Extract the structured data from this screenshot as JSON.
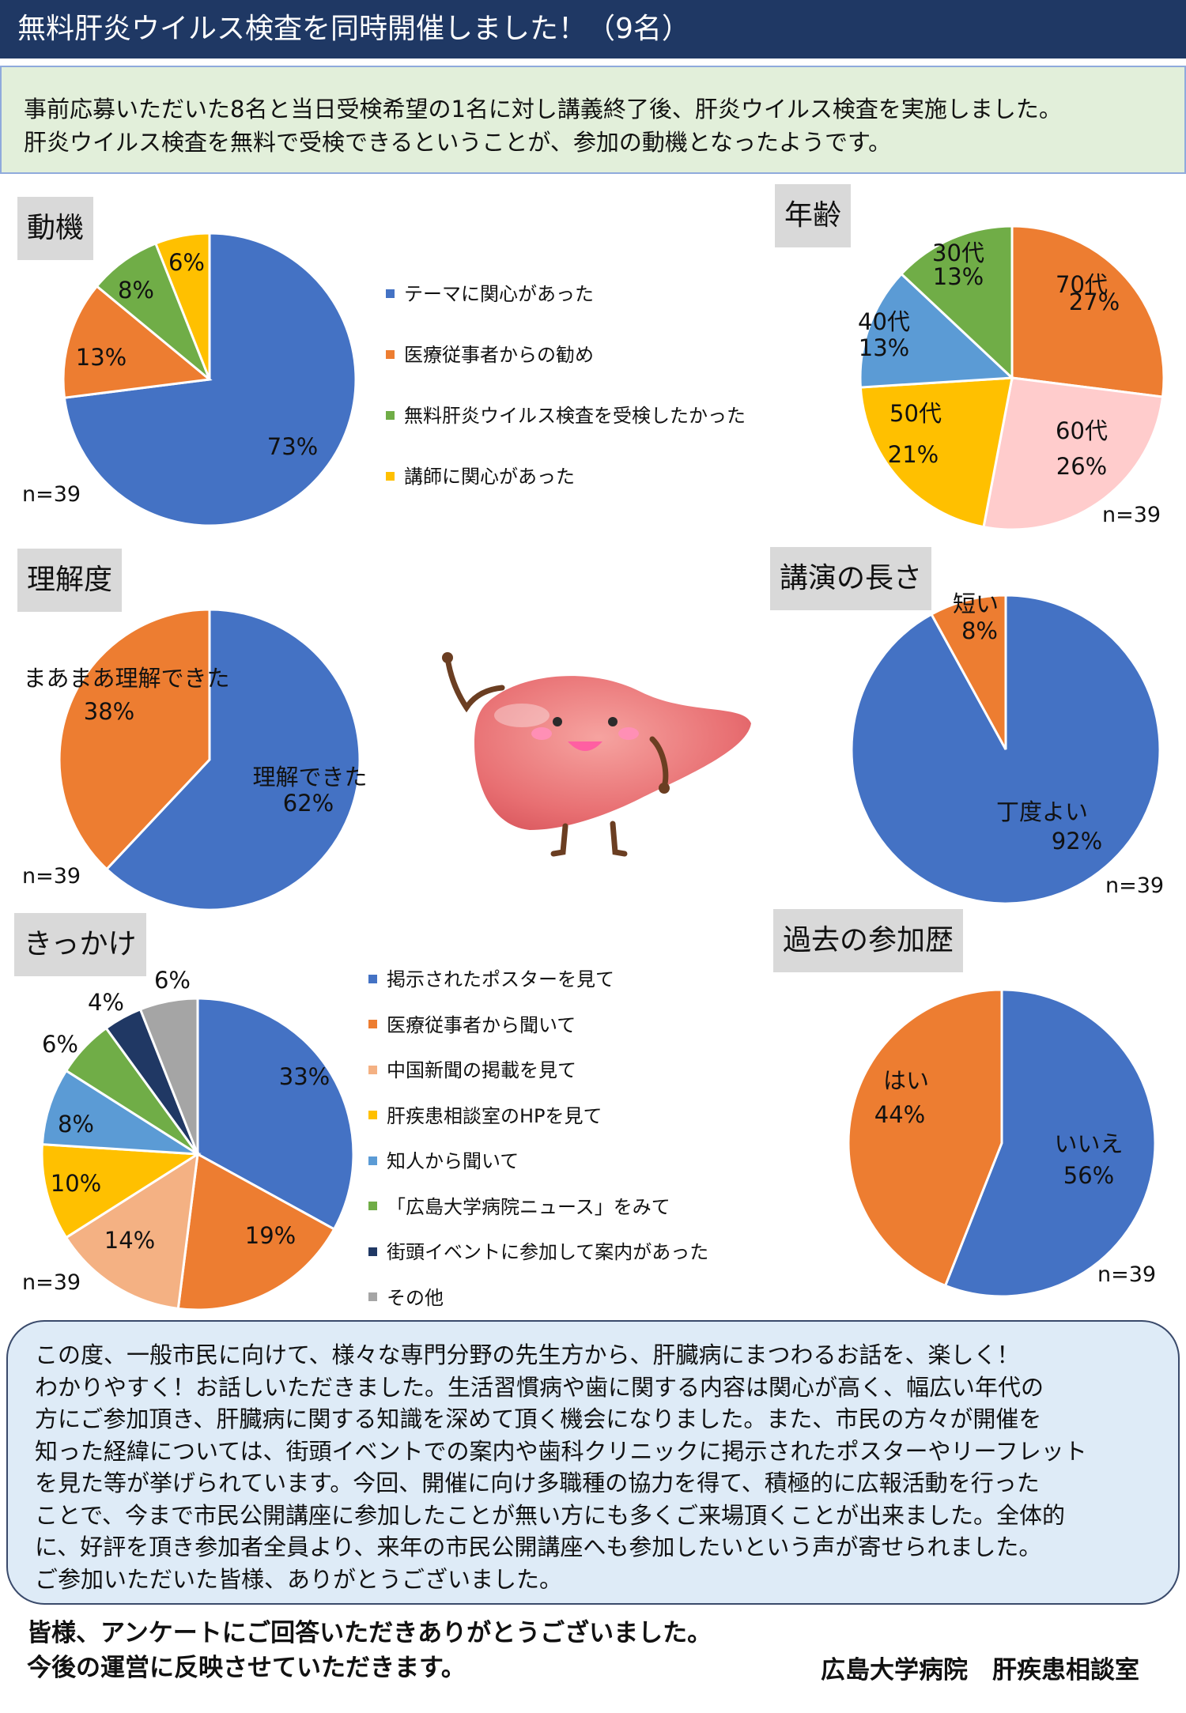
{
  "header": {
    "title": "無料肝炎ウイルス検査を同時開催しました！（9名）"
  },
  "intro": {
    "lines": [
      "事前応募いただいた8名と当日受検希望の1名に対し講義終了後、肝炎ウイルス検査を実施しました。",
      "肝炎ウイルス検査を無料で受検できるということが、参加の動機となったようです。"
    ]
  },
  "colors": {
    "blue": "#4472c4",
    "orange": "#ed7d31",
    "green": "#70ad47",
    "yellow": "#ffc000",
    "pink": "#ffcccc",
    "skyblue": "#5b9bd5",
    "peach": "#f4b183",
    "navy": "#203864",
    "gray": "#a5a5a5",
    "header_bg": "#1f3864",
    "intro_bg": "#e2efda",
    "summary_bg": "#deebf7"
  },
  "chart_data": [
    {
      "id": "motive",
      "type": "pie",
      "title": "動機",
      "n": "n=39",
      "slices": [
        {
          "label": "テーマに関心があった",
          "value": 73,
          "text": "73%",
          "color": "#4472c4"
        },
        {
          "label": "医療従事者からの勧め",
          "value": 13,
          "text": "13%",
          "color": "#ed7d31"
        },
        {
          "label": "無料肝炎ウイルス検査を受検したかった",
          "value": 8,
          "text": "8%",
          "color": "#70ad47"
        },
        {
          "label": "講師に関心があった",
          "value": 6,
          "text": "6%",
          "color": "#ffc000"
        }
      ]
    },
    {
      "id": "age",
      "type": "pie",
      "title": "年齢",
      "n": "n=39",
      "slices": [
        {
          "label": "70代",
          "value": 27,
          "text": "27%",
          "color": "#ed7d31"
        },
        {
          "label": "60代",
          "value": 26,
          "text": "26%",
          "color": "#ffcccc"
        },
        {
          "label": "50代",
          "value": 21,
          "text": "21%",
          "color": "#ffc000"
        },
        {
          "label": "40代",
          "value": 13,
          "text": "13%",
          "color": "#5b9bd5"
        },
        {
          "label": "30代",
          "value": 13,
          "text": "13%",
          "color": "#70ad47"
        }
      ]
    },
    {
      "id": "understanding",
      "type": "pie",
      "title": "理解度",
      "n": "n=39",
      "slices": [
        {
          "label": "理解できた",
          "value": 62,
          "text": "62%",
          "color": "#4472c4"
        },
        {
          "label": "まあまあ理解できた",
          "value": 38,
          "text": "38%",
          "color": "#ed7d31"
        }
      ]
    },
    {
      "id": "length",
      "type": "pie",
      "title": "講演の長さ",
      "n": "n=39",
      "slices": [
        {
          "label": "丁度よい",
          "value": 92,
          "text": "92%",
          "color": "#4472c4"
        },
        {
          "label": "短い",
          "value": 8,
          "text": "8%",
          "color": "#ed7d31"
        }
      ]
    },
    {
      "id": "trigger",
      "type": "pie",
      "title": "きっかけ",
      "n": "n=39",
      "slices": [
        {
          "label": "掲示されたポスターを見て",
          "value": 33,
          "text": "33%",
          "color": "#4472c4"
        },
        {
          "label": "医療従事者から聞いて",
          "value": 19,
          "text": "19%",
          "color": "#ed7d31"
        },
        {
          "label": "中国新聞の掲載を見て",
          "value": 14,
          "text": "14%",
          "color": "#f4b183"
        },
        {
          "label": "肝疾患相談室のHPを見て",
          "value": 10,
          "text": "10%",
          "color": "#ffc000"
        },
        {
          "label": "知人から聞いて",
          "value": 8,
          "text": "8%",
          "color": "#5b9bd5"
        },
        {
          "label": "「広島大学病院ニュース」をみて",
          "value": 6,
          "text": "6%",
          "color": "#70ad47"
        },
        {
          "label": "街頭イベントに参加して案内があった",
          "value": 4,
          "text": "4%",
          "color": "#203864"
        },
        {
          "label": "その他",
          "value": 6,
          "text": "6%",
          "color": "#a5a5a5"
        }
      ]
    },
    {
      "id": "history",
      "type": "pie",
      "title": "過去の参加歴",
      "n": "n=39",
      "slices": [
        {
          "label": "いいえ",
          "value": 56,
          "text": "56%",
          "color": "#4472c4"
        },
        {
          "label": "はい",
          "value": 44,
          "text": "44%",
          "color": "#ed7d31"
        }
      ]
    }
  ],
  "summary": {
    "lines": [
      "この度、一般市民に向けて、様々な専門分野の先生方から、肝臓病にまつわるお話を、楽しく！",
      "わかりやすく！お話しいただきました。生活習慣病や歯に関する内容は関心が高く、幅広い年代の",
      "方にご参加頂き、肝臓病に関する知識を深めて頂く機会になりました。また、市民の方々が開催を",
      "知った経緯については、街頭イベントでの案内や歯科クリニックに掲示されたポスターやリーフレット",
      "を見た等が挙げられています。今回、開催に向け多職種の協力を得て、積極的に広報活動を行った",
      "ことで、今まで市民公開講座に参加したことが無い方にも多くご来場頂くことが出来ました。全体的",
      "に、好評を頂き参加者全員より、来年の市民公開講座へも参加したいという声が寄せられました。",
      "ご参加いただいた皆様、ありがとうございました。"
    ]
  },
  "footer": {
    "thanks": [
      "皆様、アンケートにご回答いただきありがとうございました。",
      "今後の運営に反映させていただきます。"
    ],
    "org": "広島大学病院　肝疾患相談室"
  }
}
